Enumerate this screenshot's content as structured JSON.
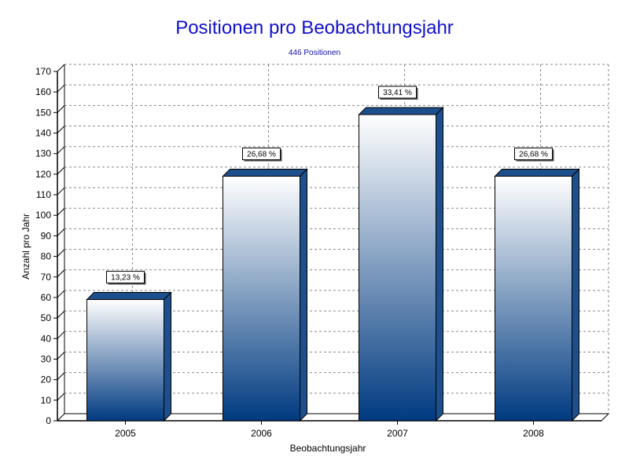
{
  "chart_data": {
    "type": "bar",
    "title": "Positionen pro Beobachtungsjahr",
    "subtitle": "446 Positionen",
    "xlabel": "Beobachtungsjahr",
    "ylabel": "Anzahl pro Jahr",
    "categories": [
      "2005",
      "2006",
      "2007",
      "2008"
    ],
    "values": [
      59,
      119,
      149,
      119
    ],
    "data_labels": [
      "13,23 %",
      "26,68 %",
      "33,41 %",
      "26,68 %"
    ],
    "ylim": [
      0,
      170
    ],
    "yticks": [
      0,
      10,
      20,
      30,
      40,
      50,
      60,
      70,
      80,
      90,
      100,
      110,
      120,
      130,
      140,
      150,
      160,
      170
    ],
    "grid": true,
    "colors": {
      "bar_top": "#ffffff",
      "bar_bottom": "#003a80",
      "bar_side": "#1d4f8c",
      "title": "#1111cc",
      "subtitle": "#1111aa",
      "grid": "#888888"
    }
  }
}
